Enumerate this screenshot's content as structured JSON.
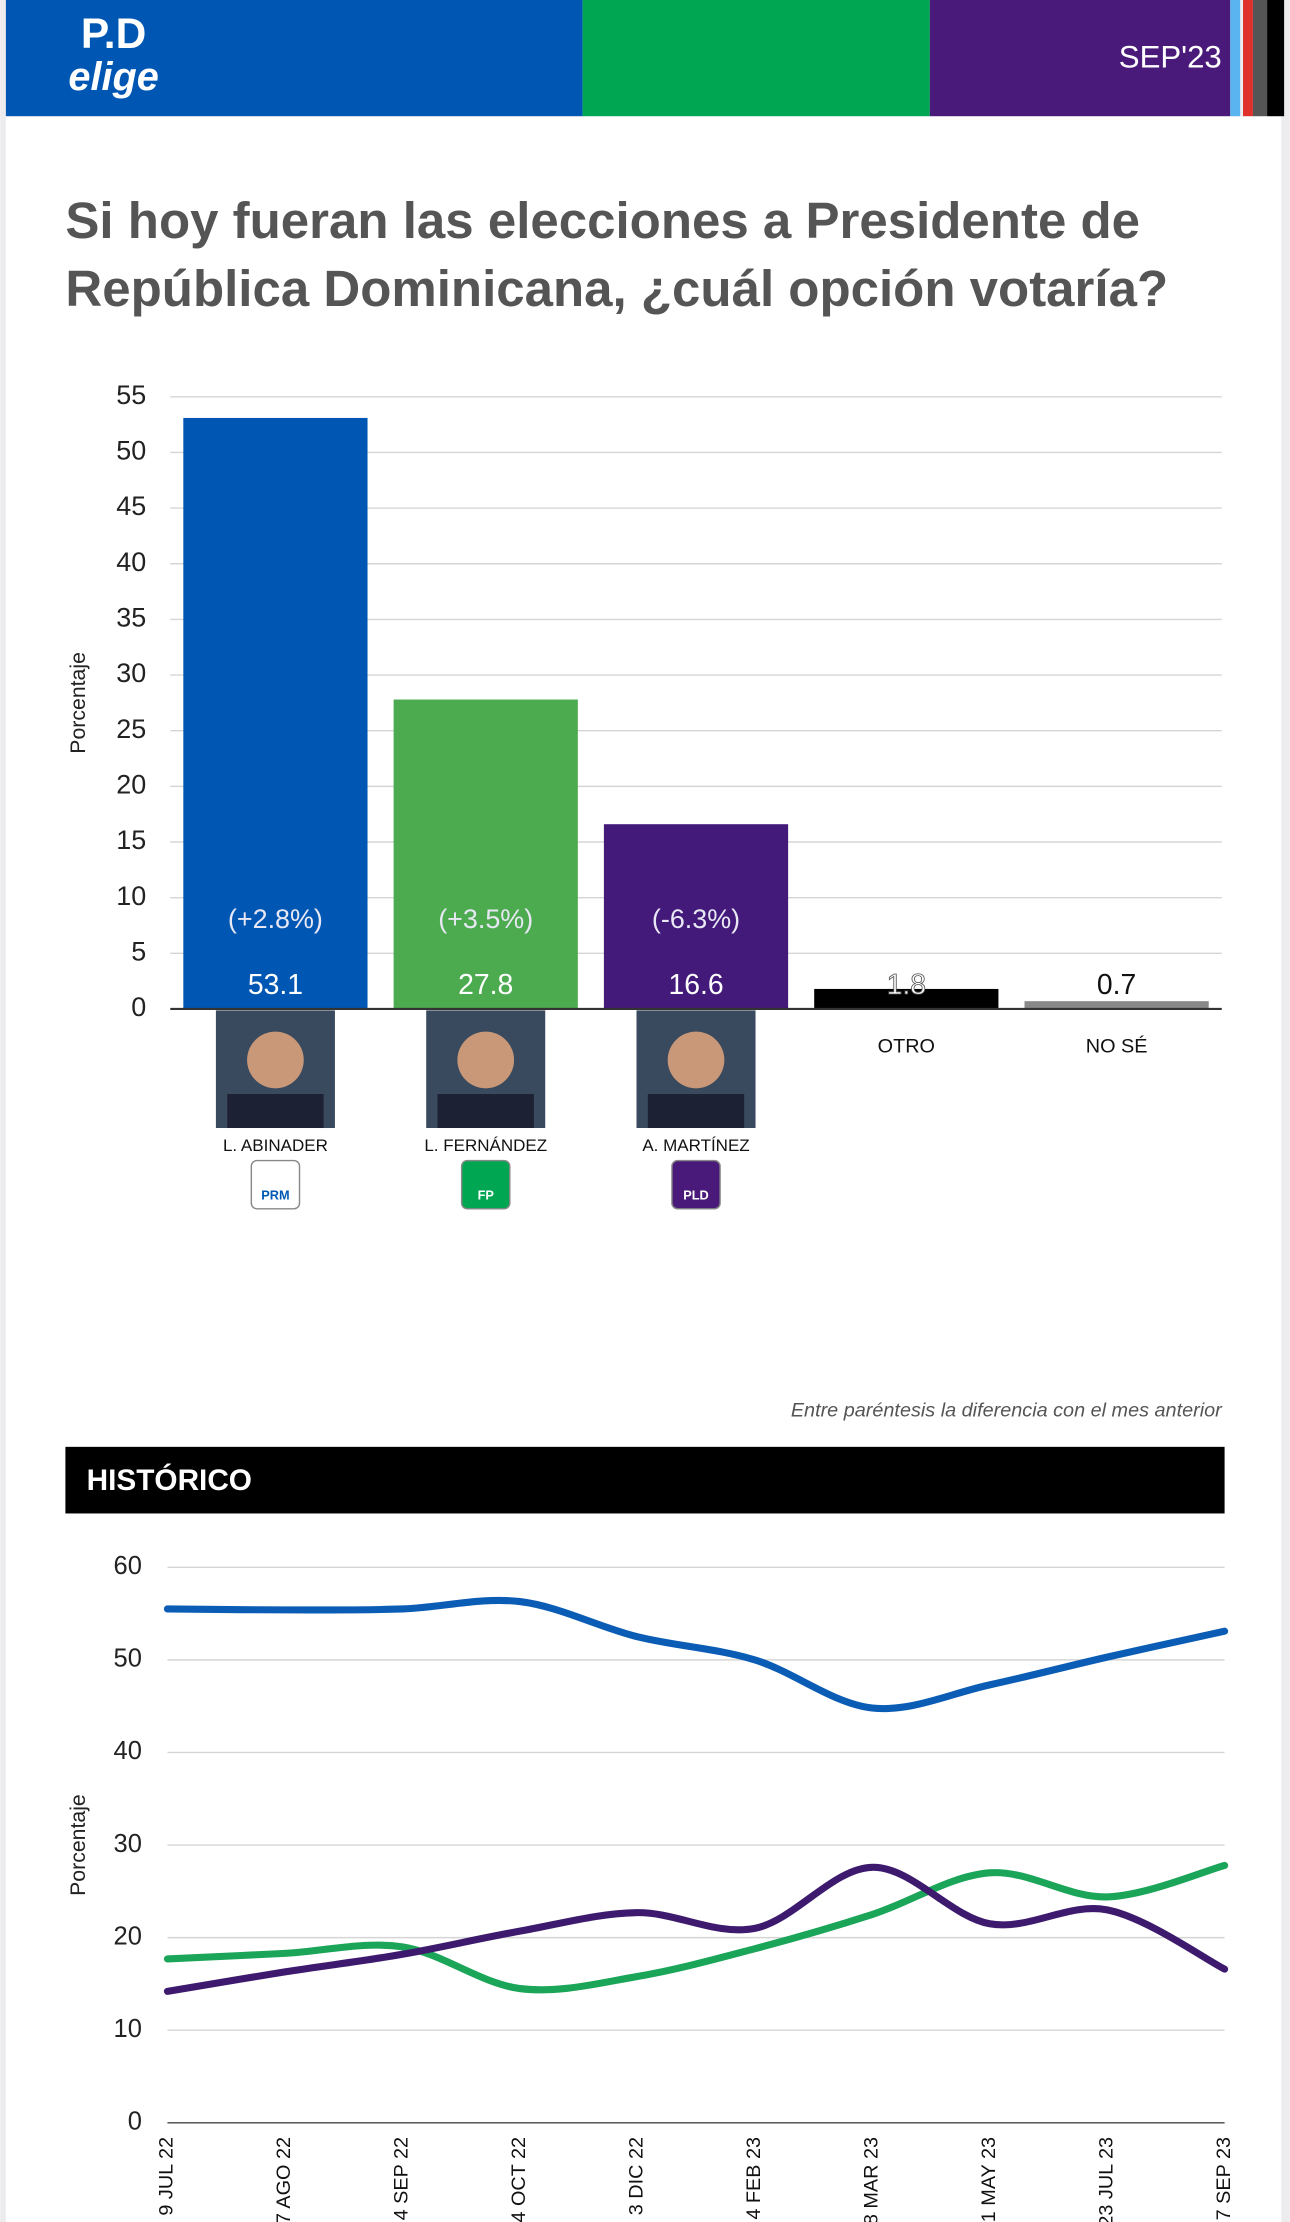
{
  "header": {
    "logo_top": "P.D",
    "logo_bottom": "elige",
    "date": "SEP'23"
  },
  "chart_data": [
    {
      "type": "bar",
      "title": "Si hoy fueran las elecciones a Presidente de República Dominicana, ¿cuál opción votaría?",
      "y_label": "Porcentaje",
      "categories": [
        "L. ABINADER",
        "L. FERNÁNDEZ",
        "A. MARTÍNEZ",
        "OTRO",
        "NO SÉ"
      ],
      "values": [
        53.1,
        27.8,
        16.6,
        1.8,
        0.7
      ],
      "colors": [
        "#0057b3",
        "#4caa4f",
        "#43197a",
        "#000000",
        "#888888"
      ],
      "change_labels": [
        "(+2.8%)",
        "(+3.5%)",
        "(-6.3%)",
        null,
        null
      ],
      "party_labels": [
        "PRM",
        "FP",
        "PLD",
        null,
        null
      ],
      "party_colors": [
        "#ffffff",
        "#00a651",
        "#4a1a7a",
        null,
        null
      ],
      "ylim": [
        0,
        55
      ],
      "yticks": [
        0,
        5,
        10,
        15,
        20,
        25,
        30,
        35,
        40,
        45,
        50,
        55
      ],
      "grid": true,
      "note": "Entre paréntesis la diferencia con el mes anterior"
    },
    {
      "type": "line",
      "title": "HISTÓRICO",
      "y_label": "Porcentaje",
      "categories": [
        "9 JUL 22",
        "7 AGO 22",
        "4 SEP 22",
        "4 OCT 22",
        "3 DIC 22",
        "4 FEB 23",
        "8 MAR 23",
        "1 MAY 23",
        "23 JUL 23",
        "7 SEP 23"
      ],
      "series": [
        {
          "color": "#0a5cb5",
          "values": [
            55.5,
            55.4,
            55.5,
            56.3,
            52.5,
            50,
            44.8,
            47.3,
            50.3,
            53.1
          ]
        },
        {
          "color": "#1aa558",
          "values": [
            17.7,
            18.3,
            19,
            14.5,
            15.8,
            18.8,
            22.5,
            27,
            24.4,
            27.8
          ]
        },
        {
          "color": "#3d1a6e",
          "values": [
            14.2,
            16.3,
            18.2,
            20.7,
            22.7,
            21,
            27.6,
            21.5,
            23,
            16.6
          ]
        }
      ],
      "ylim": [
        0,
        60
      ],
      "yticks": [
        0,
        10,
        20,
        30,
        40,
        50,
        60
      ],
      "grid": true
    }
  ]
}
